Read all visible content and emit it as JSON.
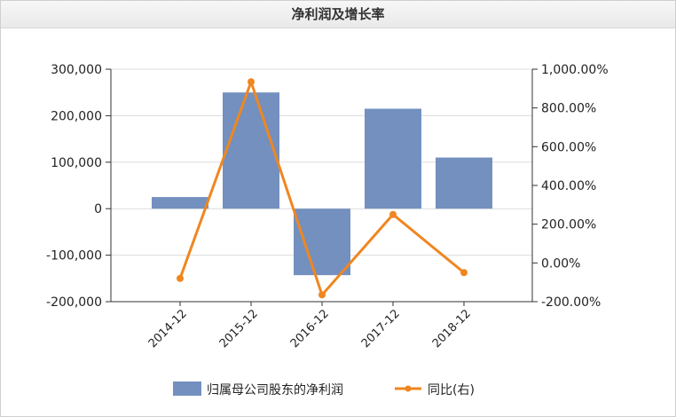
{
  "chart_data": {
    "type": "bar",
    "title": "净利润及增长率",
    "categories": [
      "2014-12",
      "2015-12",
      "2016-12",
      "2017-12",
      "2018-12"
    ],
    "series": [
      {
        "name": "归属母公司股东的净利润",
        "type": "bar",
        "axis": "left",
        "values": [
          25000,
          250000,
          -143000,
          215000,
          110000
        ]
      },
      {
        "name": "同比(右)",
        "type": "line",
        "axis": "right",
        "values": [
          -80,
          935,
          -165,
          250,
          -50
        ]
      }
    ],
    "left_axis": {
      "ylim": [
        -200000,
        300000
      ],
      "ticks": [
        "300,000",
        "200,000",
        "100,000",
        "0",
        "-100,000",
        "-200,000"
      ]
    },
    "right_axis": {
      "ylim": [
        -200,
        1000
      ],
      "ticks": [
        "1,000.00%",
        "800.00%",
        "600.00%",
        "400.00%",
        "200.00%",
        "0.00%",
        "-200.00%"
      ]
    },
    "grid": true,
    "legend_position": "bottom",
    "colors": {
      "bar": "#7390bf",
      "line": "#f08620",
      "axis": "#333333",
      "grid": "#dcdcdc"
    }
  }
}
